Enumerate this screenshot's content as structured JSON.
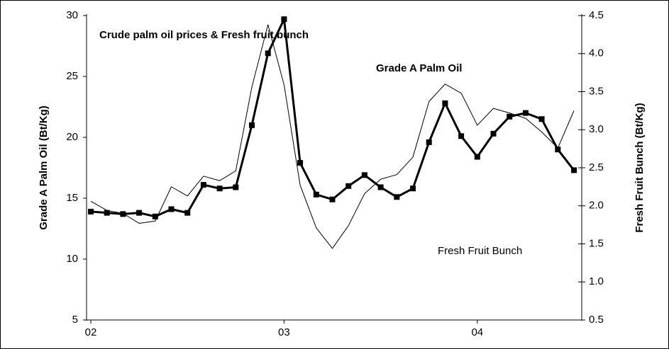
{
  "chart_data": {
    "type": "line",
    "title": "Crude palm oil prices & Fresh fruit bunch",
    "y_label": "Grade A Palm Oil (Bt/Kg)",
    "y2_label": "Fresh Fruit Bunch (Bt/Kg)",
    "categories": [
      "02",
      null,
      null,
      null,
      null,
      null,
      null,
      null,
      null,
      null,
      null,
      null,
      "03",
      null,
      null,
      null,
      null,
      null,
      null,
      null,
      null,
      null,
      null,
      null,
      "04",
      null,
      null,
      null,
      null,
      null,
      null
    ],
    "series": [
      {
        "name": "Grade A Palm Oil",
        "color": "#000000",
        "axis": "y",
        "values": [
          13.9,
          13.8,
          13.7,
          13.8,
          13.5,
          14.1,
          13.8,
          16.1,
          15.8,
          15.9,
          21.0,
          26.9,
          29.7,
          17.9,
          15.3,
          14.9,
          16.0,
          16.9,
          15.9,
          15.1,
          15.8,
          19.6,
          22.8,
          20.1,
          18.4,
          20.3,
          21.7,
          22.0,
          21.5,
          19.0,
          17.3
        ]
      },
      {
        "name": "Fresh Fruit Bunch",
        "color": "#000000",
        "axis": "y2",
        "values": [
          2.06,
          1.94,
          1.9,
          1.77,
          1.8,
          2.25,
          2.13,
          2.39,
          2.33,
          2.46,
          3.56,
          4.38,
          3.59,
          2.27,
          1.71,
          1.44,
          1.74,
          2.16,
          2.35,
          2.41,
          2.64,
          3.37,
          3.6,
          3.48,
          3.06,
          3.28,
          3.22,
          3.15,
          2.97,
          2.76,
          3.25
        ]
      }
    ],
    "ylim": [
      5,
      30
    ],
    "yticks": [
      5,
      10,
      15,
      20,
      25,
      30
    ],
    "y2lim": [
      0.5,
      4.5
    ],
    "y2ticks": [
      {
        "value": 0.5,
        "label": "0.5"
      },
      {
        "value": 1,
        "label": "1.0"
      },
      {
        "value": 1.5,
        "label": "1.5"
      },
      {
        "value": 2,
        "label": "2.0"
      },
      {
        "value": 2.5,
        "label": "2.5"
      },
      {
        "value": 3,
        "label": "3.0"
      },
      {
        "value": 3.5,
        "label": "3.5"
      },
      {
        "value": 4,
        "label": "4.0"
      },
      {
        "value": 4.5,
        "label": "4.5"
      }
    ],
    "grid": false
  }
}
